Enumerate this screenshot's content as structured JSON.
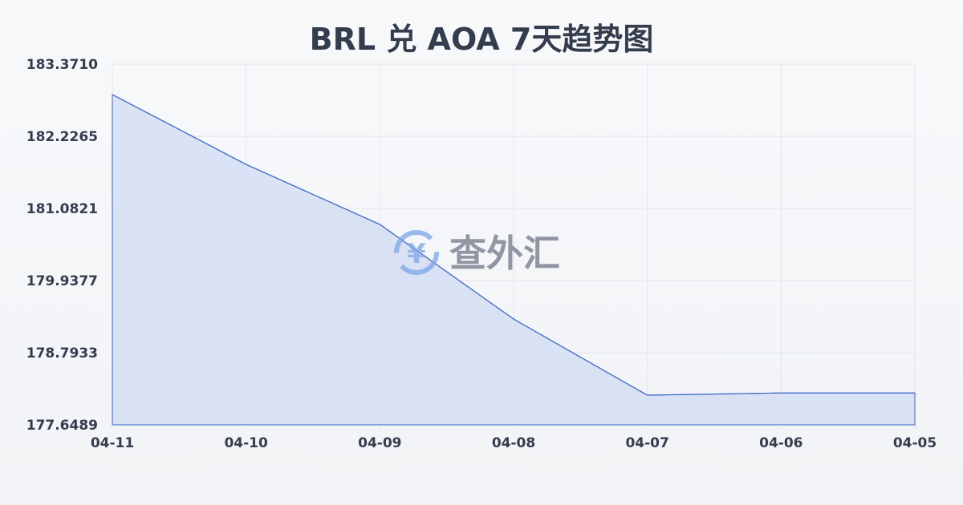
{
  "chart_data": {
    "type": "area",
    "title": "BRL 兑 AOA 7天趋势图",
    "categories": [
      "04-11",
      "04-10",
      "04-09",
      "04-08",
      "04-07",
      "04-06",
      "04-05"
    ],
    "values": [
      182.888,
      181.78,
      180.828,
      179.327,
      178.119,
      178.155,
      178.155
    ],
    "yticks": [
      "183.3710",
      "182.2265",
      "181.0821",
      "179.9377",
      "178.7933",
      "177.6489"
    ],
    "ylim": [
      177.6489,
      183.371
    ],
    "grid": true,
    "colors": {
      "line": "#3a66c8",
      "fill": "#d6e0f4"
    }
  },
  "watermark": "查外汇"
}
